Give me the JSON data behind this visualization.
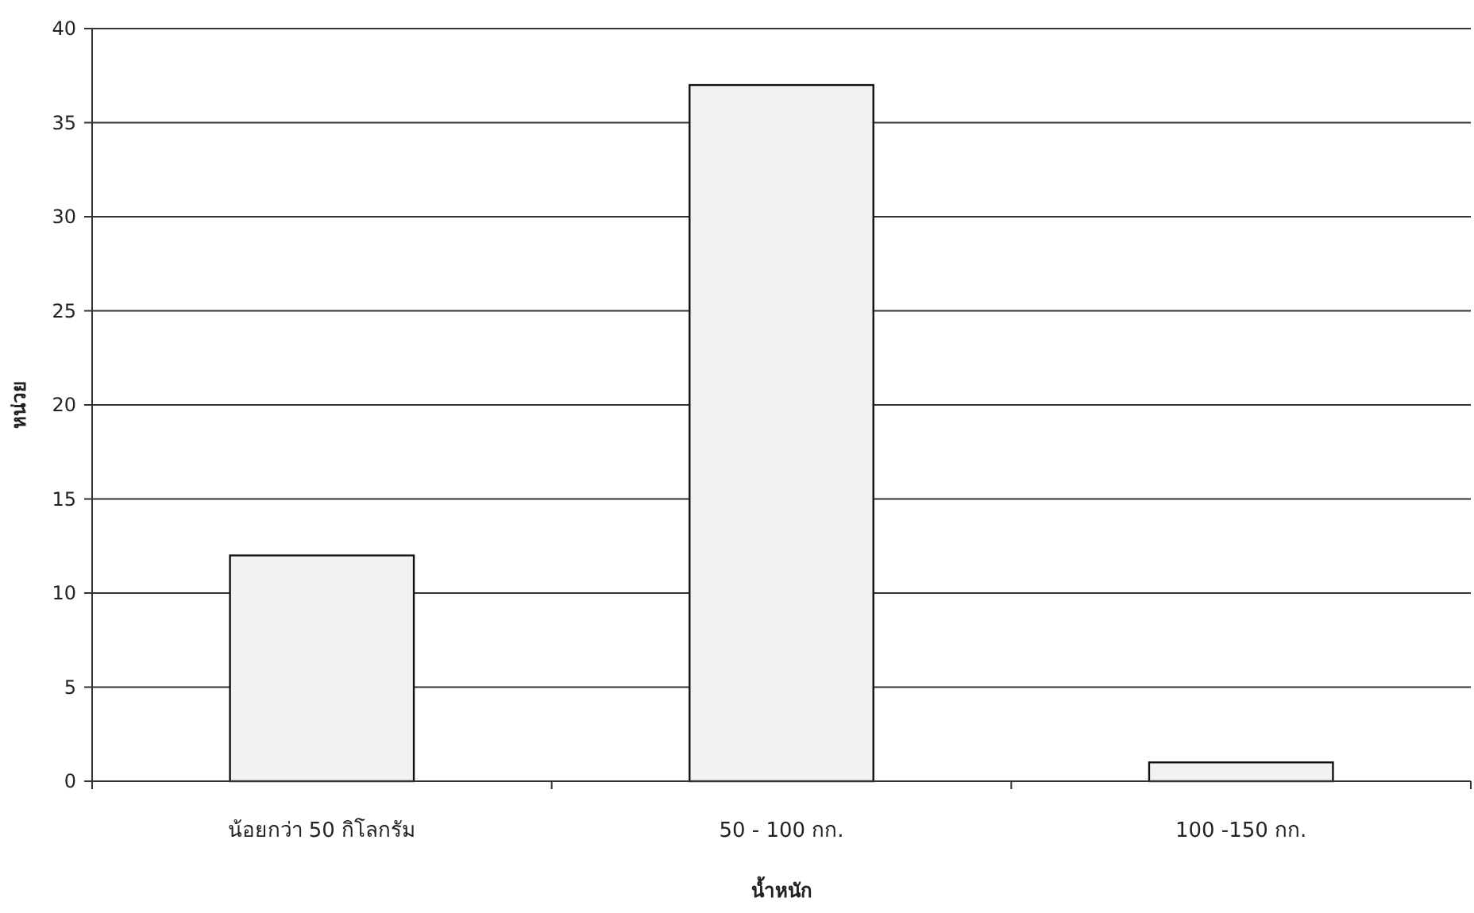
{
  "chart_data": {
    "type": "bar",
    "xlabel": "น้ำหนัก",
    "ylabel": "หน่วย",
    "categories": [
      "น้อยกว่า 50 กิโลกรัม",
      "50 - 100 กก.",
      "100 -150 กก."
    ],
    "values": [
      12,
      37,
      1
    ],
    "color": "#f2f2f2",
    "ylim": [
      0,
      40
    ],
    "yticks": [
      0,
      5,
      10,
      15,
      20,
      25,
      30,
      35,
      40
    ],
    "grid": "y"
  }
}
